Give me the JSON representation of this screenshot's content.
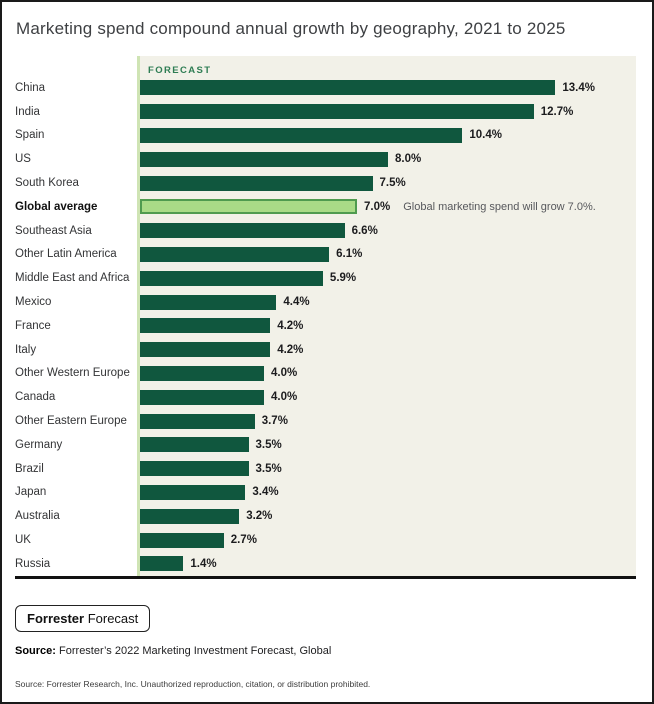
{
  "chart": {
    "plot_bg_color": "#f2f1e8",
    "axis_line_color": "#cfe4b4",
    "baseline_color": "#111111"
  },
  "chart_data": {
    "type": "bar",
    "orientation": "horizontal",
    "title": "Marketing spend compound annual growth by geography, 2021 to 2025",
    "forecast_label": "FORECAST",
    "categories": [
      "China",
      "India",
      "Spain",
      "US",
      "South Korea",
      "Global average",
      "Southeast Asia",
      "Other Latin America",
      "Middle East and Africa",
      "Mexico",
      "France",
      "Italy",
      "Other Western Europe",
      "Canada",
      "Other Eastern Europe",
      "Germany",
      "Brazil",
      "Japan",
      "Australia",
      "UK",
      "Russia"
    ],
    "values": [
      13.4,
      12.7,
      10.4,
      8.0,
      7.5,
      7.0,
      6.6,
      6.1,
      5.9,
      4.4,
      4.2,
      4.2,
      4.0,
      4.0,
      3.7,
      3.5,
      3.5,
      3.4,
      3.2,
      2.7,
      1.4
    ],
    "value_labels": [
      "13.4%",
      "12.7%",
      "10.4%",
      "8.0%",
      "7.5%",
      "7.0%",
      "6.6%",
      "6.1%",
      "5.9%",
      "4.4%",
      "4.2%",
      "4.2%",
      "4.0%",
      "4.0%",
      "3.7%",
      "3.5%",
      "3.5%",
      "3.4%",
      "3.2%",
      "2.7%",
      "1.4%"
    ],
    "highlight_category": "Global average",
    "annotation": {
      "target": "Global average",
      "text": "Global marketing spend will grow 7.0%."
    },
    "xlim": [
      0,
      16
    ],
    "xlabel": "",
    "ylabel": "",
    "grid": false,
    "legend": "none",
    "colors": {
      "bar": "#10573e",
      "highlight_fill": "#a9db87",
      "highlight_border": "#4f9b4f",
      "forecast_text": "#2e7d53"
    }
  },
  "footer": {
    "badge_bold": "Forrester",
    "badge_regular": "Forecast",
    "source_label": "Source:",
    "source_text": "Forrester’s 2022 Marketing Investment Forecast, Global",
    "fine_print": "Source: Forrester Research, Inc. Unauthorized reproduction, citation, or distribution prohibited."
  }
}
